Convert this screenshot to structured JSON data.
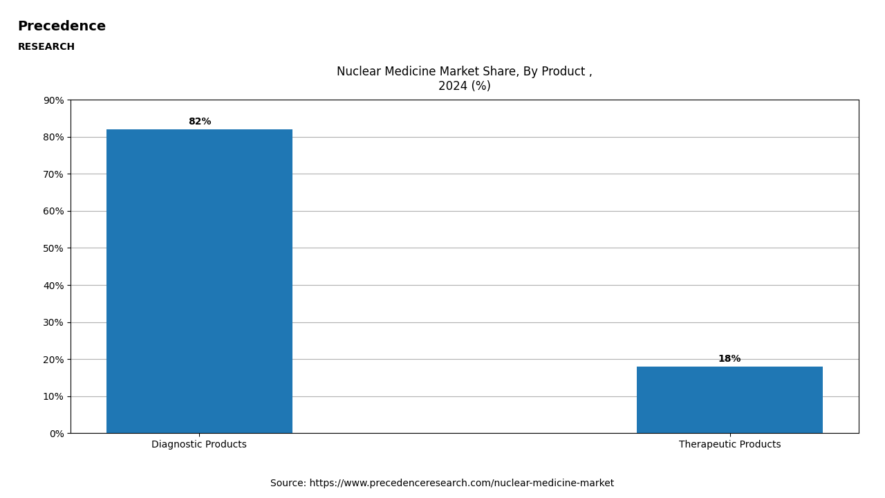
{
  "chart_data": {
    "type": "bar",
    "title": "Nuclear Medicine Market Share, By Product ,\n2024 (%)",
    "categories": [
      "Diagnostic Products",
      "Therapeutic Products"
    ],
    "values": [
      82,
      18
    ],
    "value_labels": [
      "82%",
      "18%"
    ],
    "data_labels": true,
    "ylim": [
      0,
      90
    ],
    "yticks": [
      {
        "value": 0,
        "label": "0%"
      },
      {
        "value": 10,
        "label": "10%"
      },
      {
        "value": 20,
        "label": "20%"
      },
      {
        "value": 30,
        "label": "30%"
      },
      {
        "value": 40,
        "label": "40%"
      },
      {
        "value": 50,
        "label": "50%"
      },
      {
        "value": 60,
        "label": "60%"
      },
      {
        "value": 70,
        "label": "70%"
      },
      {
        "value": 80,
        "label": "80%"
      },
      {
        "value": 90,
        "label": "90%"
      }
    ],
    "grid": true,
    "annotations": [
      "Precedence",
      "RESEARCH",
      "Source: https://www.precedenceresearch.com/nuclear-medicine-market"
    ]
  }
}
